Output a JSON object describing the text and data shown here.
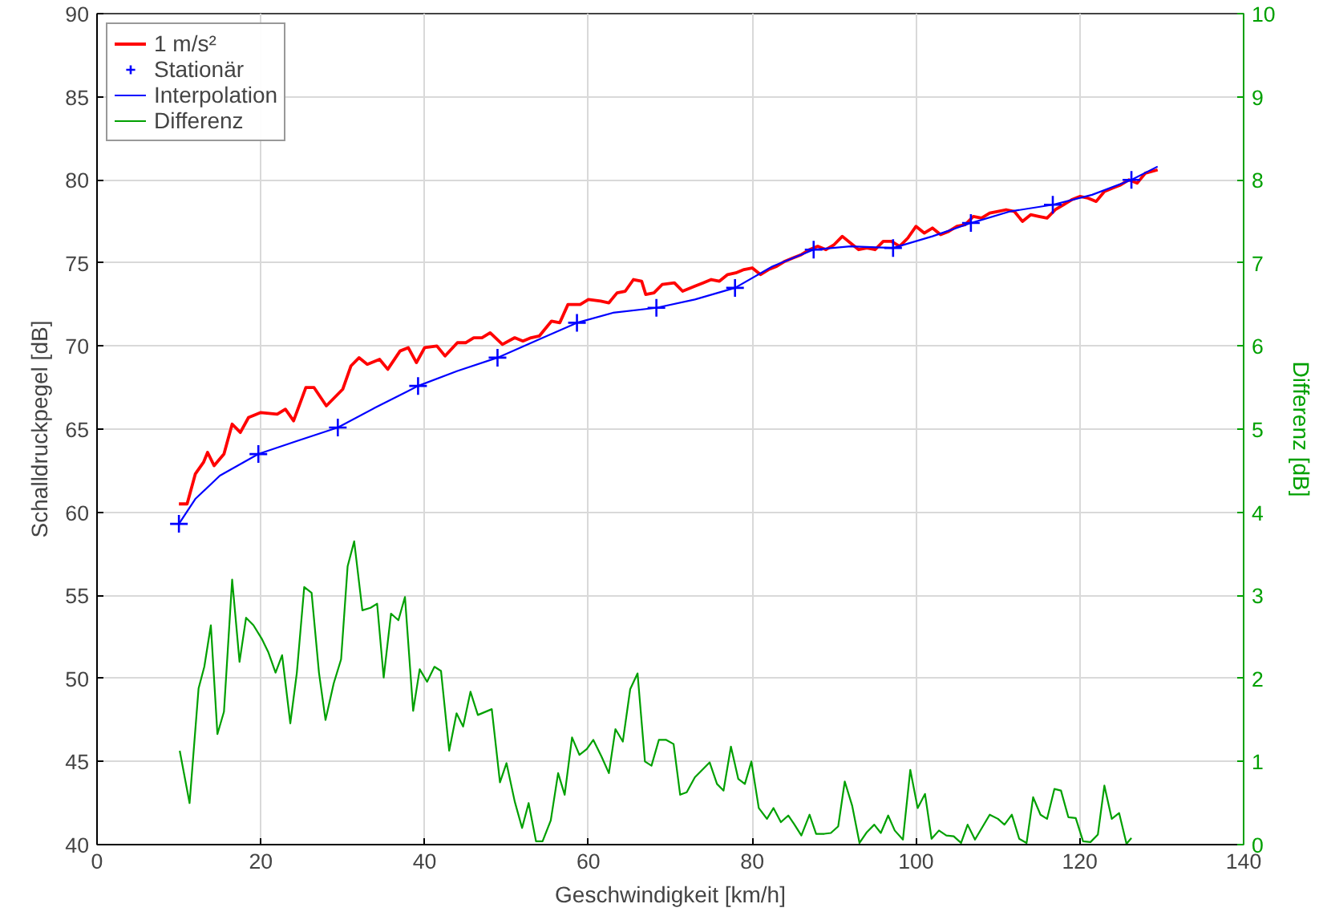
{
  "chart_data": {
    "type": "line",
    "xlabel": "Geschwindigkeit [km/h]",
    "ylabel": "Schalldruckpegel [dB]",
    "y2label": "Differenz [dB]",
    "xlim": [
      0,
      140
    ],
    "xticks": [
      0,
      20,
      40,
      60,
      80,
      100,
      120,
      140
    ],
    "ylim": [
      40,
      90
    ],
    "yticks": [
      40,
      45,
      50,
      55,
      60,
      65,
      70,
      75,
      80,
      85,
      90
    ],
    "y2lim": [
      0,
      10
    ],
    "y2ticks": [
      0,
      1,
      2,
      3,
      4,
      5,
      6,
      7,
      8,
      9,
      10
    ],
    "grid": true,
    "legend": "top left",
    "series": [
      {
        "name": "1 m/s²",
        "color": "#ff0000",
        "marker": "none",
        "x": [
          10,
          11,
          12,
          13,
          13.5,
          14.3,
          15.5,
          16.5,
          17.5,
          18.5,
          20,
          22,
          23,
          24,
          25.5,
          26.5,
          28,
          30,
          31,
          32,
          33,
          34.5,
          35.5,
          37,
          38,
          39,
          40,
          41.5,
          42.5,
          44,
          45,
          46,
          47,
          48,
          49.5,
          51,
          52,
          53,
          54,
          55.5,
          56.5,
          57.5,
          59,
          60,
          61.5,
          62.5,
          63.5,
          64.5,
          65.5,
          66.5,
          67,
          68,
          69,
          70.5,
          71.5,
          73,
          74,
          75,
          76,
          77,
          78,
          79,
          80,
          81,
          82,
          83,
          84,
          85,
          86,
          87,
          88,
          89,
          90,
          91,
          92,
          93,
          94,
          95,
          96,
          97,
          98,
          99,
          100,
          101,
          102,
          103,
          104,
          105,
          106,
          107,
          108,
          109,
          110,
          111,
          112,
          113,
          114,
          115,
          116,
          117,
          118,
          119,
          120,
          121,
          122,
          123,
          124,
          125,
          126,
          127,
          128,
          129.5
        ],
        "values": [
          60.5,
          60.5,
          62.3,
          63.0,
          63.6,
          62.8,
          63.5,
          65.3,
          64.8,
          65.7,
          66.0,
          65.9,
          66.2,
          65.5,
          67.5,
          67.5,
          66.4,
          67.4,
          68.8,
          69.3,
          68.9,
          69.2,
          68.6,
          69.7,
          69.9,
          69.0,
          69.9,
          70.0,
          69.4,
          70.2,
          70.2,
          70.5,
          70.5,
          70.8,
          70.1,
          70.5,
          70.3,
          70.5,
          70.6,
          71.5,
          71.4,
          72.5,
          72.5,
          72.8,
          72.7,
          72.6,
          73.2,
          73.3,
          74.0,
          73.9,
          73.1,
          73.2,
          73.7,
          73.8,
          73.3,
          73.6,
          73.8,
          74.0,
          73.9,
          74.3,
          74.4,
          74.6,
          74.7,
          74.3,
          74.6,
          74.8,
          75.1,
          75.3,
          75.5,
          75.8,
          76.0,
          75.8,
          76.1,
          76.6,
          76.2,
          75.8,
          75.9,
          75.8,
          76.3,
          76.3,
          76.0,
          76.5,
          77.2,
          76.8,
          77.1,
          76.7,
          76.9,
          77.2,
          77.3,
          77.8,
          77.7,
          78.0,
          78.1,
          78.2,
          78.1,
          77.5,
          77.9,
          77.8,
          77.7,
          78.2,
          78.5,
          78.8,
          79.0,
          78.9,
          78.7,
          79.3,
          79.5,
          79.7,
          80.0,
          79.8,
          80.4,
          80.6
        ]
      },
      {
        "name": "Stationär",
        "color": "#0000ff",
        "type": "scatter",
        "marker": "cross",
        "x": [
          10,
          19.7,
          29.4,
          39.2,
          48.9,
          58.6,
          68.3,
          77.9,
          87.5,
          97.2,
          106.7,
          116.7,
          126.3
        ],
        "values": [
          59.3,
          63.5,
          65.1,
          67.6,
          69.3,
          71.4,
          72.3,
          73.5,
          75.8,
          75.9,
          77.4,
          78.5,
          80.0
        ]
      },
      {
        "name": "Interpolation",
        "color": "#0000ff",
        "marker": "none",
        "x": [
          10,
          12,
          15,
          19.7,
          24.5,
          29.4,
          34,
          39.2,
          44,
          48.9,
          54,
          58.6,
          63,
          68.3,
          73,
          77.9,
          82.5,
          87.5,
          92,
          97.2,
          102,
          106.7,
          111.5,
          116.7,
          121.5,
          126.3,
          129.5
        ],
        "values": [
          59.3,
          60.8,
          62.2,
          63.5,
          64.3,
          65.1,
          66.3,
          67.6,
          68.5,
          69.3,
          70.4,
          71.4,
          72.0,
          72.3,
          72.8,
          73.5,
          74.8,
          75.8,
          76.0,
          75.9,
          76.6,
          77.4,
          78.1,
          78.5,
          79.1,
          80.0,
          80.8
        ]
      },
      {
        "name": "Differenz",
        "color": "#00a000",
        "marker": "none",
        "axis": "y2",
        "x": [
          10.1,
          11.3,
          12.4,
          13.1,
          13.9,
          14.7,
          15.5,
          16.5,
          17.4,
          18.2,
          19.1,
          20.1,
          20.9,
          21.8,
          22.6,
          23.6,
          24.4,
          25.3,
          26.2,
          27.1,
          27.9,
          28.9,
          29.8,
          30.6,
          31.4,
          32.4,
          33.4,
          34.2,
          35.0,
          35.9,
          36.8,
          37.6,
          38.6,
          39.4,
          40.3,
          41.2,
          42.0,
          43.0,
          43.9,
          44.7,
          45.6,
          46.5,
          48.2,
          49.2,
          50.0,
          51.0,
          51.9,
          52.7,
          53.6,
          54.4,
          55.4,
          56.3,
          57.1,
          58.0,
          58.9,
          59.8,
          60.6,
          61.6,
          62.5,
          63.3,
          64.2,
          65.1,
          66.0,
          66.9,
          67.7,
          68.6,
          69.5,
          70.4,
          71.2,
          72.0,
          73.0,
          73.9,
          74.8,
          75.7,
          76.5,
          77.4,
          78.3,
          79.1,
          79.9,
          80.8,
          81.8,
          82.6,
          83.5,
          84.4,
          85.1,
          86.0,
          87.0,
          87.8,
          88.8,
          89.6,
          90.5,
          91.3,
          92.2,
          93.1,
          94.0,
          94.9,
          95.7,
          96.6,
          97.4,
          98.4,
          99.3,
          100.2,
          101.1,
          101.9,
          102.8,
          103.7,
          104.6,
          105.5,
          106.3,
          107.2,
          109.0,
          110.0,
          110.8,
          111.7,
          112.6,
          113.5,
          114.3,
          115.2,
          116.0,
          116.9,
          117.7,
          118.6,
          119.5,
          120.4,
          121.3,
          122.2,
          123.0,
          123.9,
          124.8,
          125.7,
          126.3
        ],
        "values": [
          1.13,
          0.5,
          1.88,
          2.14,
          2.64,
          1.33,
          1.6,
          3.19,
          2.2,
          2.73,
          2.64,
          2.48,
          2.32,
          2.07,
          2.28,
          1.46,
          2.07,
          3.1,
          3.03,
          2.07,
          1.5,
          1.94,
          2.23,
          3.35,
          3.65,
          2.82,
          2.85,
          2.9,
          2.01,
          2.78,
          2.7,
          2.98,
          1.61,
          2.11,
          1.96,
          2.14,
          2.09,
          1.13,
          1.58,
          1.42,
          1.84,
          1.56,
          1.63,
          0.75,
          0.98,
          0.52,
          0.2,
          0.5,
          0.04,
          0.04,
          0.29,
          0.86,
          0.6,
          1.29,
          1.08,
          1.15,
          1.26,
          1.06,
          0.86,
          1.39,
          1.24,
          1.87,
          2.06,
          1.0,
          0.95,
          1.26,
          1.26,
          1.21,
          0.6,
          0.63,
          0.81,
          0.9,
          0.99,
          0.73,
          0.65,
          1.18,
          0.79,
          0.73,
          1.0,
          0.44,
          0.31,
          0.44,
          0.27,
          0.35,
          0.25,
          0.11,
          0.36,
          0.13,
          0.13,
          0.14,
          0.22,
          0.76,
          0.47,
          0.02,
          0.15,
          0.24,
          0.14,
          0.35,
          0.17,
          0.06,
          0.9,
          0.44,
          0.61,
          0.07,
          0.17,
          0.11,
          0.1,
          0.02,
          0.24,
          0.06,
          0.36,
          0.31,
          0.24,
          0.36,
          0.07,
          0.02,
          0.57,
          0.36,
          0.31,
          0.67,
          0.65,
          0.33,
          0.32,
          0.04,
          0.03,
          0.12,
          0.71,
          0.31,
          0.38,
          0.01,
          0.08
        ]
      }
    ]
  }
}
